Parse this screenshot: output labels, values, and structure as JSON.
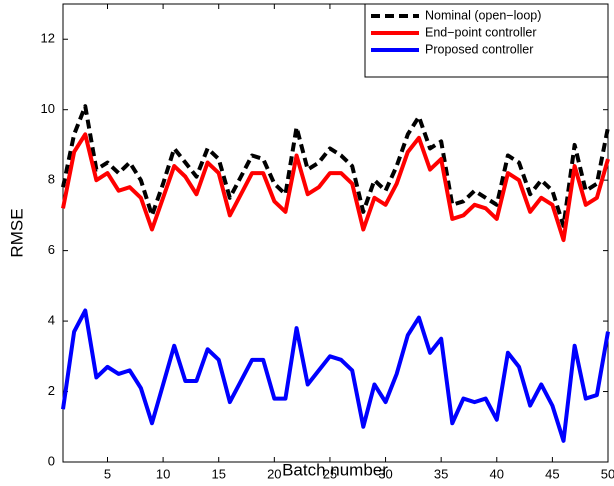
{
  "chart_data": {
    "type": "line",
    "x_label": "Batch number",
    "y_label": "RMSE",
    "x": [
      1,
      2,
      3,
      4,
      5,
      6,
      7,
      8,
      9,
      10,
      11,
      12,
      13,
      14,
      15,
      16,
      17,
      18,
      19,
      20,
      21,
      22,
      23,
      24,
      25,
      26,
      27,
      28,
      29,
      30,
      31,
      32,
      33,
      34,
      35,
      36,
      37,
      38,
      39,
      40,
      41,
      42,
      43,
      44,
      45,
      46,
      47,
      48,
      49,
      50
    ],
    "xlim": [
      1,
      50
    ],
    "xticks": [
      5,
      10,
      15,
      20,
      25,
      30,
      35,
      40,
      45,
      50
    ],
    "ylim": [
      0,
      13
    ],
    "yticks": [
      0,
      2,
      4,
      6,
      8,
      10,
      12
    ],
    "legend": "upper right",
    "series": [
      {
        "name": "Nominal (open−loop)",
        "color": "#000000",
        "style": "dashed",
        "values": [
          7.8,
          9.3,
          10.1,
          8.3,
          8.5,
          8.2,
          8.5,
          8.0,
          7.0,
          7.9,
          8.9,
          8.5,
          8.1,
          8.9,
          8.6,
          7.5,
          8.1,
          8.7,
          8.6,
          7.9,
          7.6,
          9.5,
          8.3,
          8.5,
          8.9,
          8.7,
          8.4,
          7.1,
          8.0,
          7.7,
          8.4,
          9.3,
          9.8,
          8.9,
          9.1,
          7.3,
          7.4,
          7.7,
          7.5,
          7.3,
          8.7,
          8.5,
          7.6,
          8.0,
          7.7,
          6.7,
          9.0,
          7.7,
          7.9,
          9.5
        ]
      },
      {
        "name": "End−point controller",
        "color": "#ff0000",
        "style": "solid",
        "values": [
          7.2,
          8.8,
          9.3,
          8.0,
          8.2,
          7.7,
          7.8,
          7.5,
          6.6,
          7.5,
          8.4,
          8.1,
          7.6,
          8.5,
          8.2,
          7.0,
          7.6,
          8.2,
          8.2,
          7.4,
          7.1,
          8.7,
          7.6,
          7.8,
          8.2,
          8.2,
          7.9,
          6.6,
          7.5,
          7.3,
          7.9,
          8.8,
          9.2,
          8.3,
          8.6,
          6.9,
          7.0,
          7.3,
          7.2,
          6.9,
          8.2,
          8.0,
          7.1,
          7.5,
          7.3,
          6.3,
          8.4,
          7.3,
          7.5,
          8.6
        ]
      },
      {
        "name": "Proposed controller",
        "color": "#0000ff",
        "style": "solid",
        "values": [
          1.5,
          3.7,
          4.3,
          2.4,
          2.7,
          2.5,
          2.6,
          2.1,
          1.1,
          2.2,
          3.3,
          2.3,
          2.3,
          3.2,
          2.9,
          1.7,
          2.3,
          2.9,
          2.9,
          1.8,
          1.8,
          3.8,
          2.2,
          2.6,
          3.0,
          2.9,
          2.6,
          1.0,
          2.2,
          1.7,
          2.5,
          3.6,
          4.1,
          3.1,
          3.5,
          1.1,
          1.8,
          1.7,
          1.8,
          1.2,
          3.1,
          2.7,
          1.6,
          2.2,
          1.6,
          0.6,
          3.3,
          1.8,
          1.9,
          3.7
        ]
      }
    ]
  }
}
